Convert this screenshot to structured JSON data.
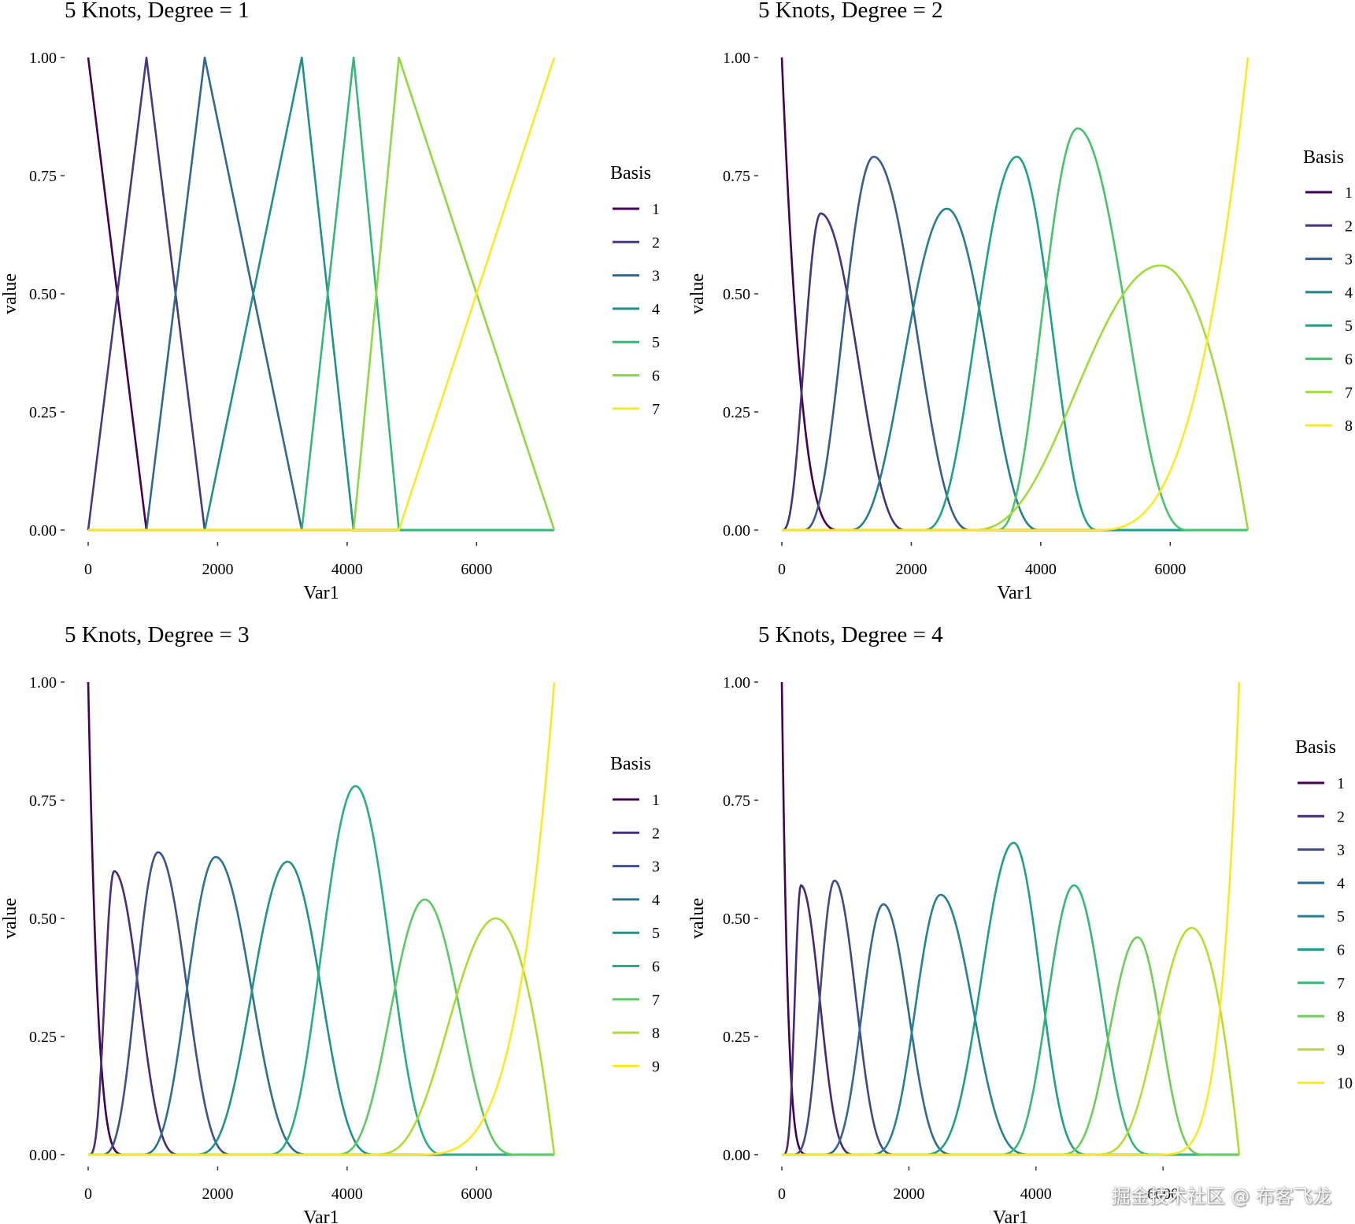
{
  "chart_data": [
    {
      "type": "line",
      "title": "5 Knots, Degree = 1",
      "xlabel": "Var1",
      "ylabel": "value",
      "xlim": [
        0,
        7200
      ],
      "ylim": [
        0,
        1
      ],
      "xticks": [
        0,
        2000,
        4000,
        6000
      ],
      "xtick_labels": [
        "0",
        "2000",
        "4000",
        "6000"
      ],
      "yticks": [
        0,
        0.25,
        0.5,
        0.75,
        1
      ],
      "ytick_labels": [
        "0.00",
        "0.25",
        "0.50",
        "0.75",
        "1.00"
      ],
      "legend_title": "Basis",
      "series": [
        {
          "name": "1",
          "color": "#440154",
          "peak_x": 0,
          "peak_y": 1.0
        },
        {
          "name": "2",
          "color": "#443A83",
          "peak_x": 900,
          "peak_y": 1.0
        },
        {
          "name": "3",
          "color": "#31688E",
          "peak_x": 1800,
          "peak_y": 1.0
        },
        {
          "name": "4",
          "color": "#21908C",
          "peak_x": 3300,
          "peak_y": 1.0
        },
        {
          "name": "5",
          "color": "#35B779",
          "peak_x": 4100,
          "peak_y": 1.0
        },
        {
          "name": "6",
          "color": "#8FD744",
          "peak_x": 4800,
          "peak_y": 1.0
        },
        {
          "name": "7",
          "color": "#FDE725",
          "peak_x": 7200,
          "peak_y": 1.0
        }
      ]
    },
    {
      "type": "line",
      "title": "5 Knots, Degree = 2",
      "xlabel": "Var1",
      "ylabel": "value",
      "xlim": [
        0,
        7200
      ],
      "ylim": [
        0,
        1
      ],
      "xticks": [
        0,
        2000,
        4000,
        6000
      ],
      "xtick_labels": [
        "0",
        "2000",
        "4000",
        "6000"
      ],
      "yticks": [
        0,
        0.25,
        0.5,
        0.75,
        1
      ],
      "ytick_labels": [
        "0.00",
        "0.25",
        "0.50",
        "0.75",
        "1.00"
      ],
      "legend_title": "Basis",
      "series": [
        {
          "name": "1",
          "color": "#440154",
          "peak_x": 0,
          "peak_y": 1.0
        },
        {
          "name": "2",
          "color": "#46327E",
          "peak_x": 600,
          "peak_y": 0.67
        },
        {
          "name": "3",
          "color": "#365C8D",
          "peak_x": 1420,
          "peak_y": 0.79
        },
        {
          "name": "4",
          "color": "#277F8E",
          "peak_x": 2550,
          "peak_y": 0.68
        },
        {
          "name": "5",
          "color": "#1FA187",
          "peak_x": 3630,
          "peak_y": 0.79
        },
        {
          "name": "6",
          "color": "#4AC16D",
          "peak_x": 4570,
          "peak_y": 0.85
        },
        {
          "name": "7",
          "color": "#9FDA3A",
          "peak_x": 5850,
          "peak_y": 0.56
        },
        {
          "name": "8",
          "color": "#FDE725",
          "peak_x": 7200,
          "peak_y": 1.0
        }
      ]
    },
    {
      "type": "line",
      "title": "5 Knots, Degree = 3",
      "xlabel": "Var1",
      "ylabel": "value",
      "xlim": [
        0,
        7200
      ],
      "ylim": [
        0,
        1
      ],
      "xticks": [
        0,
        2000,
        4000,
        6000
      ],
      "xtick_labels": [
        "0",
        "2000",
        "4000",
        "6000"
      ],
      "yticks": [
        0,
        0.25,
        0.5,
        0.75,
        1
      ],
      "ytick_labels": [
        "0.00",
        "0.25",
        "0.50",
        "0.75",
        "1.00"
      ],
      "legend_title": "Basis",
      "series": [
        {
          "name": "1",
          "color": "#440154",
          "peak_x": 0,
          "peak_y": 1.0
        },
        {
          "name": "2",
          "color": "#472D7B",
          "peak_x": 400,
          "peak_y": 0.6
        },
        {
          "name": "3",
          "color": "#3B528B",
          "peak_x": 1080,
          "peak_y": 0.64
        },
        {
          "name": "4",
          "color": "#2C728E",
          "peak_x": 1970,
          "peak_y": 0.63
        },
        {
          "name": "5",
          "color": "#21918C",
          "peak_x": 3080,
          "peak_y": 0.62
        },
        {
          "name": "6",
          "color": "#28AE80",
          "peak_x": 4130,
          "peak_y": 0.78
        },
        {
          "name": "7",
          "color": "#5EC962",
          "peak_x": 5200,
          "peak_y": 0.54
        },
        {
          "name": "8",
          "color": "#ADDC30",
          "peak_x": 6300,
          "peak_y": 0.5
        },
        {
          "name": "9",
          "color": "#FDE725",
          "peak_x": 7200,
          "peak_y": 1.0
        }
      ]
    },
    {
      "type": "line",
      "title": "5 Knots, Degree = 4",
      "xlabel": "Var1",
      "ylabel": "value",
      "xlim": [
        0,
        7200
      ],
      "ylim": [
        0,
        1
      ],
      "xticks": [
        0,
        2000,
        4000,
        6000
      ],
      "xtick_labels": [
        "0",
        "2000",
        "4000",
        "6000"
      ],
      "yticks": [
        0,
        0.25,
        0.5,
        0.75,
        1
      ],
      "ytick_labels": [
        "0.00",
        "0.25",
        "0.50",
        "0.75",
        "1.00"
      ],
      "legend_title": "Basis",
      "series": [
        {
          "name": "1",
          "color": "#440154",
          "peak_x": 0,
          "peak_y": 1.0
        },
        {
          "name": "2",
          "color": "#482878",
          "peak_x": 300,
          "peak_y": 0.57
        },
        {
          "name": "3",
          "color": "#3E4A89",
          "peak_x": 830,
          "peak_y": 0.58
        },
        {
          "name": "4",
          "color": "#31688E",
          "peak_x": 1600,
          "peak_y": 0.53
        },
        {
          "name": "5",
          "color": "#26828E",
          "peak_x": 2500,
          "peak_y": 0.55
        },
        {
          "name": "6",
          "color": "#1F9E89",
          "peak_x": 3650,
          "peak_y": 0.66
        },
        {
          "name": "7",
          "color": "#35B779",
          "peak_x": 4600,
          "peak_y": 0.57
        },
        {
          "name": "8",
          "color": "#6DCD59",
          "peak_x": 5600,
          "peak_y": 0.46
        },
        {
          "name": "9",
          "color": "#B4DE2C",
          "peak_x": 6450,
          "peak_y": 0.48
        },
        {
          "name": "10",
          "color": "#FDE725",
          "peak_x": 7200,
          "peak_y": 1.0
        }
      ]
    }
  ],
  "watermark": "掘金技术社区 @ 布客飞龙"
}
